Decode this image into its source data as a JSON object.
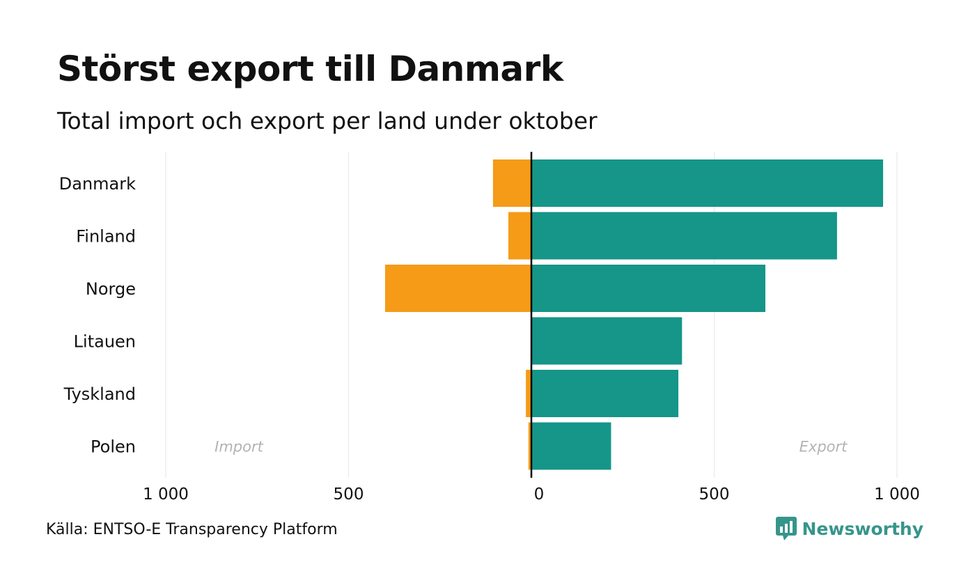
{
  "title": "Störst export till Danmark",
  "subtitle": "Total import och export per land under oktober",
  "source": "Källa: ENTSO-E Transparency Platform",
  "brand": {
    "name": "Newsworthy",
    "icon": "newsworthy-logo-icon"
  },
  "colors": {
    "import": "#f59b18",
    "export": "#159688",
    "zero_line": "#000000",
    "grid": "#e6e6e6",
    "side_label": "#b3b3b3"
  },
  "chart_data": {
    "type": "bar",
    "orientation": "horizontal-diverging",
    "categories": [
      "Danmark",
      "Finland",
      "Norge",
      "Litauen",
      "Tyskland",
      "Polen"
    ],
    "series": [
      {
        "name": "Import",
        "values": [
          105,
          63,
          400,
          0,
          15,
          8
        ]
      },
      {
        "name": "Export",
        "values": [
          962,
          836,
          640,
          412,
          402,
          218
        ]
      }
    ],
    "xlim": [
      -1000,
      1000
    ],
    "ticks": [
      {
        "value": -1000,
        "label": "1 000"
      },
      {
        "value": -500,
        "label": "500"
      },
      {
        "value": 0,
        "label": "0"
      },
      {
        "value": 500,
        "label": "500"
      },
      {
        "value": 1000,
        "label": "1 000"
      }
    ],
    "side_labels": {
      "left": "Import",
      "right": "Export"
    },
    "grid": true
  }
}
